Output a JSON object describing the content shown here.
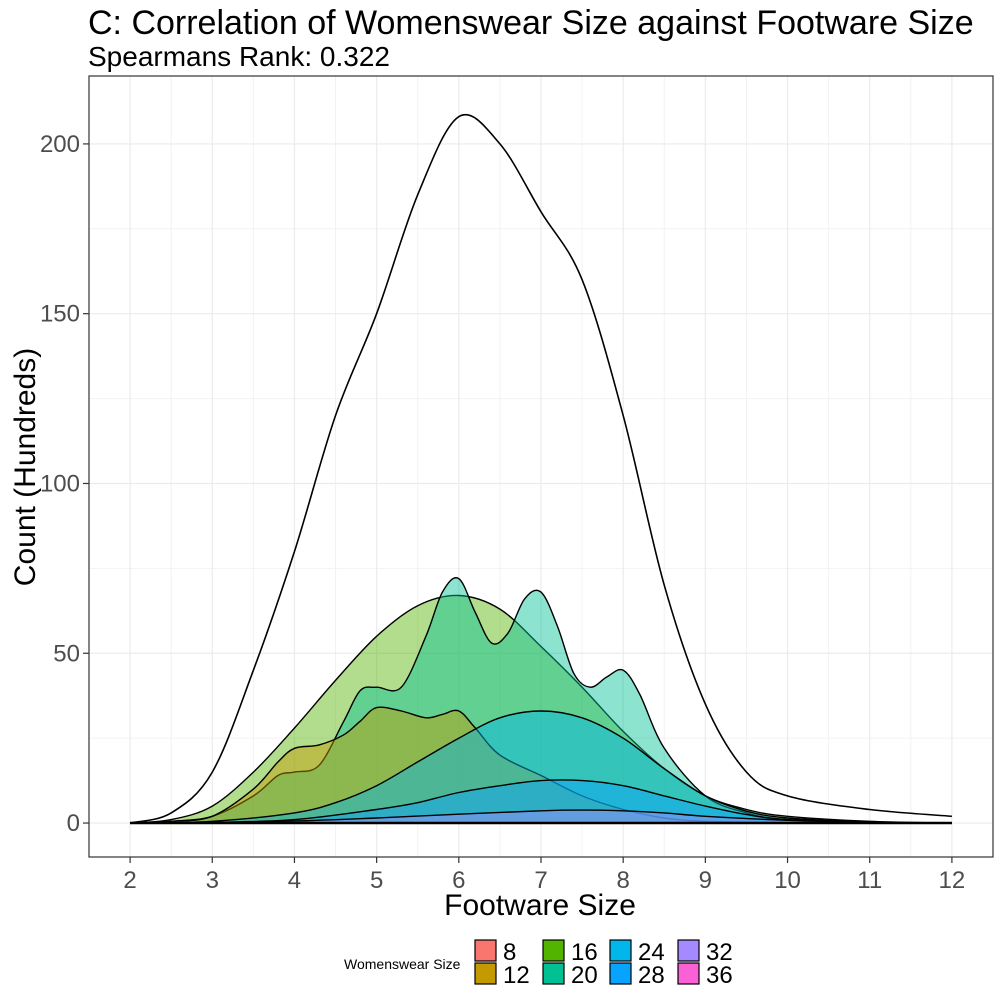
{
  "chart_data": {
    "type": "area",
    "title": "C: Correlation of Womenswear Size against Footware Size",
    "subtitle": "Spearmans Rank: 0.322",
    "xlabel": "Footware Size",
    "ylabel": "Count (Hundreds)",
    "xlim": [
      1.5,
      12.5
    ],
    "ylim": [
      -10,
      220
    ],
    "x_ticks": [
      2,
      3,
      4,
      5,
      6,
      7,
      8,
      9,
      10,
      11,
      12
    ],
    "y_ticks": [
      0,
      50,
      100,
      150,
      200
    ],
    "grid": true,
    "legend": {
      "title": "Womenswear Size",
      "position": "bottom",
      "entries": [
        {
          "label": "8",
          "color": "#F8766D"
        },
        {
          "label": "12",
          "color": "#C49A00"
        },
        {
          "label": "16",
          "color": "#53B400"
        },
        {
          "label": "20",
          "color": "#00C094"
        },
        {
          "label": "24",
          "color": "#00B6EB"
        },
        {
          "label": "28",
          "color": "#06A4FF"
        },
        {
          "label": "32",
          "color": "#A58AFF"
        },
        {
          "label": "36",
          "color": "#FB61D7"
        }
      ]
    },
    "series": [
      {
        "name": "",
        "fill": "none",
        "x": [
          2,
          2.5,
          3,
          3.5,
          4,
          4.5,
          5,
          5.5,
          6,
          6.5,
          7,
          7.5,
          8,
          8.5,
          9,
          9.5,
          10,
          11,
          12
        ],
        "y": [
          0,
          3,
          15,
          45,
          80,
          120,
          150,
          185,
          208,
          200,
          180,
          160,
          120,
          70,
          35,
          15,
          8,
          4,
          2
        ]
      },
      {
        "name": "16",
        "fill": "#53B400",
        "x": [
          2,
          2.5,
          3,
          3.5,
          4,
          4.5,
          5,
          5.5,
          6,
          6.5,
          7,
          7.5,
          8,
          8.5,
          9,
          9.5,
          10,
          11,
          12
        ],
        "y": [
          0,
          1,
          5,
          15,
          28,
          42,
          55,
          64,
          67,
          63,
          52,
          40,
          27,
          16,
          8,
          4,
          2,
          0.5,
          0
        ]
      },
      {
        "name": "20",
        "fill": "#00C094",
        "x": [
          2,
          2.5,
          3,
          3.5,
          3.8,
          4,
          4.3,
          4.6,
          4.8,
          5,
          5.3,
          5.6,
          5.8,
          6,
          6.2,
          6.4,
          6.6,
          6.8,
          7,
          7.2,
          7.4,
          7.6,
          7.8,
          8,
          8.2,
          8.5,
          9,
          9.5,
          10,
          11,
          12
        ],
        "y": [
          0,
          0.5,
          2,
          8,
          14,
          15,
          17,
          30,
          39,
          40,
          40,
          55,
          68,
          72,
          62,
          53,
          56,
          66,
          68,
          58,
          44,
          40,
          43,
          45,
          38,
          22,
          8,
          3,
          1,
          0.2,
          0
        ]
      },
      {
        "name": "12",
        "fill": "#C49A00",
        "x": [
          2,
          2.5,
          3,
          3.5,
          3.8,
          4,
          4.3,
          4.6,
          4.8,
          5,
          5.3,
          5.6,
          5.8,
          6,
          6.2,
          6.5,
          7,
          7.5,
          8,
          8.5,
          9,
          10,
          12
        ],
        "y": [
          0,
          0.5,
          2,
          10,
          18,
          22,
          23,
          26,
          30,
          34,
          33,
          31,
          32,
          33,
          28,
          20,
          14,
          8,
          4,
          1.5,
          0.5,
          0.1,
          0
        ]
      },
      {
        "name": "24",
        "fill": "#00B6EB",
        "x": [
          2,
          3,
          4,
          4.5,
          5,
          5.5,
          6,
          6.5,
          7,
          7.5,
          8,
          8.5,
          9,
          9.5,
          10,
          11,
          12
        ],
        "y": [
          0,
          0.5,
          3,
          6,
          11,
          18,
          25,
          31,
          33,
          31,
          25,
          16,
          8,
          3.5,
          1.5,
          0.3,
          0
        ]
      },
      {
        "name": "28",
        "fill": "#06A4FF",
        "x": [
          2,
          3,
          4,
          5,
          5.5,
          6,
          6.5,
          7,
          7.5,
          8,
          8.5,
          9,
          9.5,
          10,
          11,
          12
        ],
        "y": [
          0,
          0.2,
          1,
          4,
          6,
          9,
          11,
          12.5,
          12.5,
          11,
          8,
          5,
          2.5,
          1,
          0.2,
          0
        ]
      },
      {
        "name": "32",
        "fill": "#A58AFF",
        "x": [
          2,
          3,
          4,
          5,
          6,
          7,
          7.5,
          8,
          8.5,
          9,
          10,
          11,
          12
        ],
        "y": [
          0,
          0.2,
          0.6,
          1.5,
          2.6,
          3.6,
          3.8,
          3.6,
          3,
          2,
          0.8,
          0.2,
          0
        ]
      }
    ]
  }
}
